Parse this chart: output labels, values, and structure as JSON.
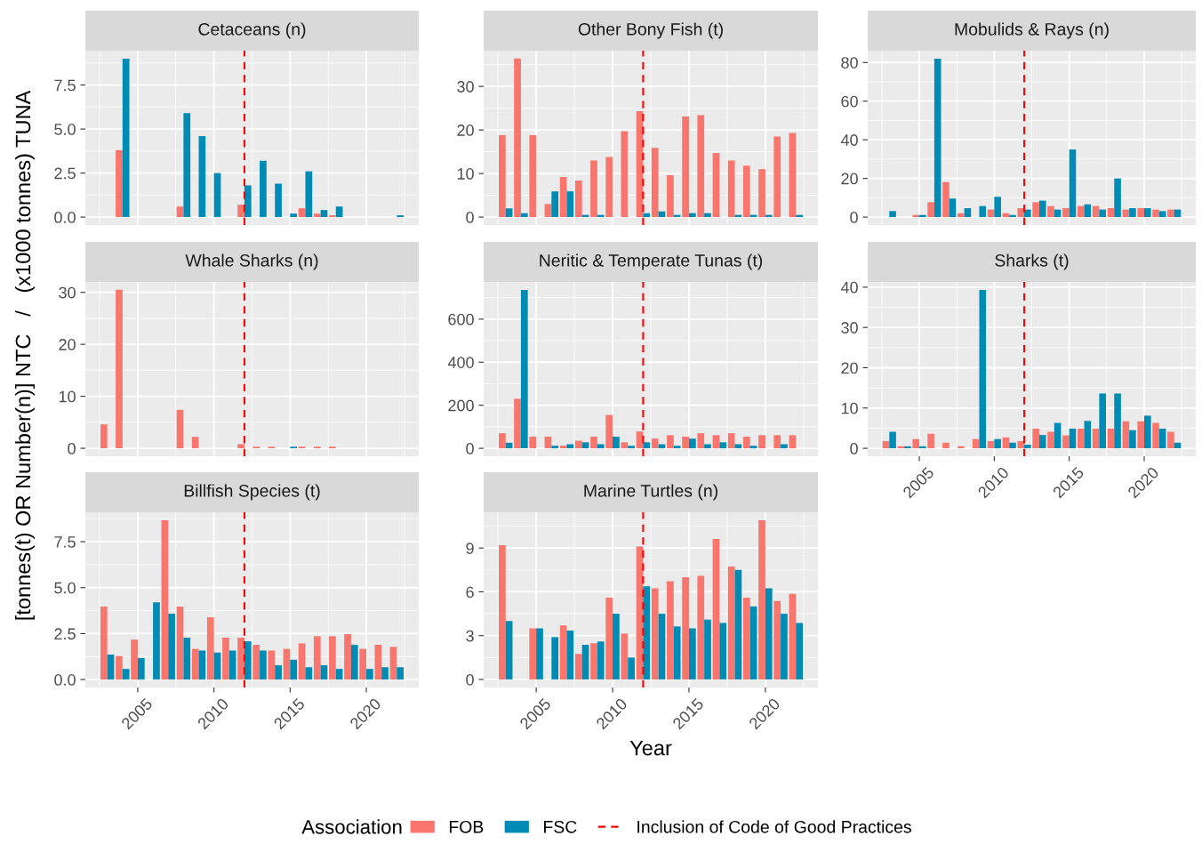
{
  "chart_data": [
    {
      "type": "bar",
      "title": "Cetaceans (n)",
      "ylabel": "[tonnes(t) OR Number(n)] NTC   /   (x1000 tonnes) TUNA",
      "legend": "bottom",
      "legend_title": "Association",
      "grid": true,
      "tick_labels": "y",
      "x": [
        2003,
        2004,
        2005,
        2006,
        2007,
        2008,
        2009,
        2010,
        2011,
        2012,
        2013,
        2014,
        2015,
        2016,
        2017,
        2018,
        2019,
        2020,
        2021,
        2022
      ],
      "series": [
        {
          "name": "FOB",
          "color": "#f8766d",
          "values": [
            0,
            3.8,
            0,
            0,
            0,
            0.6,
            0,
            0,
            0,
            0.7,
            0,
            0,
            0,
            0.5,
            0.2,
            0.1,
            0,
            0,
            0,
            0
          ]
        },
        {
          "name": "FSC",
          "color": "#008bb5",
          "values": [
            0,
            9.0,
            0,
            0,
            0,
            5.9,
            4.6,
            2.5,
            0,
            1.8,
            3.2,
            1.9,
            0.2,
            2.6,
            0.4,
            0.6,
            0,
            0,
            0,
            0.1
          ]
        }
      ],
      "xlim": [
        2001.56,
        2023.44
      ],
      "xticks": [
        2005,
        2010,
        2015,
        2020
      ],
      "ylim": [
        -0.45,
        9.45
      ],
      "yticks": [
        {
          "value": 0,
          "label": "0.0"
        },
        {
          "value": 2.5,
          "label": "2.5"
        },
        {
          "value": 5,
          "label": "5.0"
        },
        {
          "value": 7.5,
          "label": "7.5"
        }
      ],
      "ref_lines": [
        {
          "axis": "x",
          "value": 2012,
          "label": "Inclusion of Code of Good Practices",
          "color": "#ff0000",
          "line_style": "dashed"
        }
      ]
    },
    {
      "type": "bar",
      "title": "Other Bony Fish (t)",
      "grid": true,
      "tick_labels": "y",
      "x": [
        2003,
        2004,
        2005,
        2006,
        2007,
        2008,
        2009,
        2010,
        2011,
        2012,
        2013,
        2014,
        2015,
        2016,
        2017,
        2018,
        2019,
        2020,
        2021,
        2022
      ],
      "series": [
        {
          "color": "#f8766d",
          "values": [
            18.8,
            36.4,
            18.8,
            3.0,
            9.2,
            8.4,
            13.0,
            13.8,
            19.7,
            24.3,
            15.9,
            9.6,
            23.1,
            23.4,
            14.7,
            13.0,
            11.8,
            11.0,
            18.5,
            19.3
          ]
        },
        {
          "color": "#008bb5",
          "values": [
            2.0,
            0.9,
            0,
            5.9,
            5.9,
            0.5,
            0.5,
            0,
            0,
            0.9,
            1.3,
            0.5,
            0.9,
            0.9,
            0,
            0.5,
            0.5,
            0.5,
            0,
            0.5
          ]
        }
      ],
      "xlim": [
        2001.56,
        2023.44
      ],
      "xticks": [
        2005,
        2010,
        2015,
        2020
      ],
      "ylim": [
        -1.82,
        38.2
      ],
      "yticks": [
        0,
        10,
        20,
        30
      ],
      "ref_lines": [
        {
          "axis": "x",
          "value": 2012,
          "color": "#ff0000",
          "line_style": "dashed"
        }
      ]
    },
    {
      "type": "bar",
      "title": "Mobulids & Rays (n)",
      "grid": true,
      "tick_labels": "y",
      "x": [
        2003,
        2004,
        2005,
        2006,
        2007,
        2008,
        2009,
        2010,
        2011,
        2012,
        2013,
        2014,
        2015,
        2016,
        2017,
        2018,
        2019,
        2020,
        2021,
        2022
      ],
      "series": [
        {
          "color": "#f8766d",
          "values": [
            0,
            0,
            1.1,
            7.7,
            18.1,
            2.0,
            0,
            3.9,
            2.0,
            4.6,
            7.7,
            5.7,
            4.6,
            5.7,
            5.7,
            4.6,
            3.9,
            4.6,
            3.9,
            3.9
          ]
        },
        {
          "color": "#008bb5",
          "values": [
            3.1,
            0,
            1.1,
            82,
            9.6,
            4.6,
            5.7,
            10.5,
            1.1,
            3.9,
            8.5,
            3.9,
            35,
            6.6,
            3.9,
            20,
            4.6,
            4.6,
            3.1,
            3.9
          ]
        }
      ],
      "xlim": [
        2001.56,
        2023.44
      ],
      "xticks": [
        2005,
        2010,
        2015,
        2020
      ],
      "ylim": [
        -4.1,
        86.1
      ],
      "yticks": [
        0,
        20,
        40,
        60,
        80
      ],
      "ref_lines": [
        {
          "axis": "x",
          "value": 2012,
          "color": "#ff0000",
          "line_style": "dashed"
        }
      ]
    },
    {
      "type": "bar",
      "title": "Whale Sharks (n)",
      "grid": true,
      "tick_labels": "y",
      "x": [
        2003,
        2004,
        2005,
        2006,
        2007,
        2008,
        2009,
        2010,
        2011,
        2012,
        2013,
        2014,
        2015,
        2016,
        2017,
        2018,
        2019,
        2020,
        2021,
        2022
      ],
      "series": [
        {
          "color": "#f8766d",
          "values": [
            4.6,
            30.5,
            0,
            0,
            0,
            7.4,
            2.2,
            0,
            0,
            0.8,
            0.3,
            0.3,
            0,
            0.3,
            0.3,
            0.3,
            0,
            0,
            0,
            0
          ]
        },
        {
          "color": "#008bb5",
          "values": [
            0,
            0,
            0,
            0,
            0,
            0,
            0,
            0,
            0,
            0,
            0,
            0,
            0.3,
            0,
            0,
            0,
            0,
            0,
            0,
            0
          ]
        }
      ],
      "xlim": [
        2001.56,
        2023.44
      ],
      "xticks": [
        2005,
        2010,
        2015,
        2020
      ],
      "ylim": [
        -1.53,
        32.0
      ],
      "yticks": [
        0,
        10,
        20,
        30
      ],
      "ref_lines": [
        {
          "axis": "x",
          "value": 2012,
          "color": "#ff0000",
          "line_style": "dashed"
        }
      ]
    },
    {
      "type": "bar",
      "title": "Neritic & Temperate Tunas (t)",
      "grid": true,
      "tick_labels": "y",
      "x": [
        2003,
        2004,
        2005,
        2006,
        2007,
        2008,
        2009,
        2010,
        2011,
        2012,
        2013,
        2014,
        2015,
        2016,
        2017,
        2018,
        2019,
        2020,
        2021,
        2022
      ],
      "series": [
        {
          "color": "#f8766d",
          "values": [
            70,
            230,
            54,
            54,
            12,
            35,
            54,
            155,
            28,
            78,
            45,
            61,
            54,
            70,
            61,
            70,
            54,
            61,
            61,
            61
          ]
        },
        {
          "color": "#008bb5",
          "values": [
            26,
            736,
            0,
            12,
            19,
            28,
            19,
            54,
            12,
            28,
            19,
            12,
            45,
            19,
            28,
            19,
            12,
            0,
            19,
            0
          ]
        }
      ],
      "xlim": [
        2001.56,
        2023.44
      ],
      "xticks": [
        2005,
        2010,
        2015,
        2020
      ],
      "ylim": [
        -36.8,
        772.8
      ],
      "yticks": [
        0,
        200,
        400,
        600
      ],
      "ref_lines": [
        {
          "axis": "x",
          "value": 2012,
          "color": "#ff0000",
          "line_style": "dashed"
        }
      ]
    },
    {
      "type": "bar",
      "title": "Sharks (t)",
      "grid": true,
      "x": [
        2003,
        2004,
        2005,
        2006,
        2007,
        2008,
        2009,
        2010,
        2011,
        2012,
        2013,
        2014,
        2015,
        2016,
        2017,
        2018,
        2019,
        2020,
        2021,
        2022
      ],
      "series": [
        {
          "color": "#f8766d",
          "values": [
            1.8,
            0.5,
            2.3,
            3.6,
            1.4,
            0.5,
            2.3,
            1.8,
            2.7,
            1.8,
            4.9,
            4.1,
            3.2,
            4.9,
            4.9,
            4.9,
            6.7,
            6.7,
            6.3,
            4.1
          ]
        },
        {
          "color": "#008bb5",
          "values": [
            4.1,
            0.5,
            0.5,
            0,
            0,
            0,
            39.3,
            2.3,
            1.4,
            0.9,
            3.3,
            6.3,
            4.9,
            6.8,
            13.6,
            13.6,
            4.5,
            8.1,
            4.9,
            1.4
          ]
        }
      ],
      "xlim": [
        2001.56,
        2023.44
      ],
      "xticks": [
        2005,
        2010,
        2015,
        2020
      ],
      "ylim": [
        -1.97,
        41.3
      ],
      "yticks": [
        0,
        10,
        20,
        30,
        40
      ],
      "ref_lines": [
        {
          "axis": "x",
          "value": 2012,
          "color": "#ff0000",
          "line_style": "dashed"
        }
      ]
    },
    {
      "type": "bar",
      "title": "Billfish Species (t)",
      "grid": true,
      "x": [
        2003,
        2004,
        2005,
        2006,
        2007,
        2008,
        2009,
        2010,
        2011,
        2012,
        2013,
        2014,
        2015,
        2016,
        2017,
        2018,
        2019,
        2020,
        2021,
        2022
      ],
      "series": [
        {
          "color": "#f8766d",
          "values": [
            3.97,
            1.28,
            2.17,
            0,
            8.67,
            3.97,
            1.67,
            3.39,
            2.28,
            2.28,
            1.89,
            1.58,
            1.67,
            1.97,
            2.36,
            2.36,
            2.47,
            1.67,
            1.89,
            1.78
          ]
        },
        {
          "color": "#008bb5",
          "values": [
            1.36,
            0.58,
            1.17,
            4.2,
            3.58,
            2.28,
            1.58,
            1.47,
            1.58,
            2.08,
            1.58,
            0.78,
            1.08,
            0.67,
            0.78,
            0.58,
            1.89,
            0.58,
            0.67,
            0.67
          ]
        }
      ],
      "xlim": [
        2001.56,
        2023.44
      ],
      "xticks": [
        2005,
        2010,
        2015,
        2020
      ],
      "ylim": [
        -0.43,
        9.1
      ],
      "yticks": [
        {
          "value": 0,
          "label": "0.0"
        },
        {
          "value": 2.5,
          "label": "2.5"
        },
        {
          "value": 5,
          "label": "5.0"
        },
        {
          "value": 7.5,
          "label": "7.5"
        }
      ],
      "ref_lines": [
        {
          "axis": "x",
          "value": 2012,
          "color": "#ff0000",
          "line_style": "dashed"
        }
      ]
    },
    {
      "type": "bar",
      "title": "Marine Turtles (n)",
      "xlabel": "Year",
      "grid": true,
      "x": [
        2003,
        2004,
        2005,
        2006,
        2007,
        2008,
        2009,
        2010,
        2011,
        2012,
        2013,
        2014,
        2015,
        2016,
        2017,
        2018,
        2019,
        2020,
        2021,
        2022
      ],
      "series": [
        {
          "color": "#f8766d",
          "values": [
            9.2,
            0,
            3.5,
            0,
            3.7,
            1.75,
            2.48,
            5.6,
            3.14,
            9.1,
            6.24,
            6.73,
            7.0,
            7.1,
            9.63,
            7.74,
            5.6,
            10.9,
            5.37,
            5.86
          ]
        },
        {
          "color": "#008bb5",
          "values": [
            4.0,
            0,
            3.5,
            2.9,
            3.35,
            2.37,
            2.6,
            4.5,
            1.5,
            6.38,
            4.5,
            3.63,
            3.5,
            4.1,
            3.87,
            7.5,
            5.0,
            6.24,
            4.5,
            3.87
          ]
        }
      ],
      "xlim": [
        2001.56,
        2023.44
      ],
      "xticks": [
        2005,
        2010,
        2015,
        2020
      ],
      "ylim": [
        -0.55,
        11.45
      ],
      "yticks": [
        0,
        3,
        6,
        9
      ],
      "ref_lines": [
        {
          "axis": "x",
          "value": 2012,
          "color": "#ff0000",
          "line_style": "dashed"
        }
      ]
    }
  ]
}
